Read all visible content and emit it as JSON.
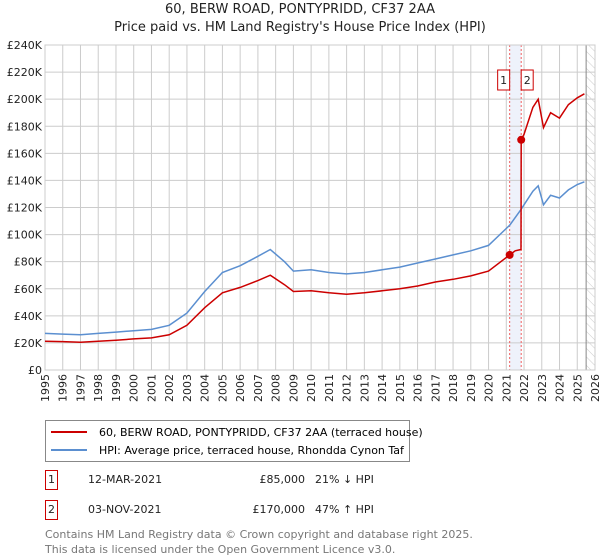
{
  "chart_data": {
    "type": "line",
    "title": "60, BERW ROAD, PONTYPRIDD, CF37 2AA",
    "subtitle": "Price paid vs. HM Land Registry's House Price Index (HPI)",
    "xlim": [
      1995,
      2026
    ],
    "ylim": [
      0,
      240000
    ],
    "x_ticks": [
      "1995",
      "1996",
      "1997",
      "1998",
      "1999",
      "2000",
      "2001",
      "2002",
      "2003",
      "2004",
      "2005",
      "2006",
      "2007",
      "2008",
      "2009",
      "2010",
      "2011",
      "2012",
      "2013",
      "2014",
      "2015",
      "2016",
      "2017",
      "2018",
      "2019",
      "2020",
      "2021",
      "2022",
      "2023",
      "2024",
      "2025",
      "2026"
    ],
    "y_ticks": [
      {
        "v": 0,
        "l": "£0"
      },
      {
        "v": 20000,
        "l": "£20K"
      },
      {
        "v": 40000,
        "l": "£40K"
      },
      {
        "v": 60000,
        "l": "£60K"
      },
      {
        "v": 80000,
        "l": "£80K"
      },
      {
        "v": 100000,
        "l": "£100K"
      },
      {
        "v": 120000,
        "l": "£120K"
      },
      {
        "v": 140000,
        "l": "£140K"
      },
      {
        "v": 160000,
        "l": "£160K"
      },
      {
        "v": 180000,
        "l": "£180K"
      },
      {
        "v": 200000,
        "l": "£200K"
      },
      {
        "v": 220000,
        "l": "£220K"
      },
      {
        "v": 240000,
        "l": "£240K"
      }
    ],
    "grid": true,
    "series": [
      {
        "name": "60, BERW ROAD, PONTYPRIDD, CF37 2AA (terraced house)",
        "color": "#cc0000",
        "x": [
          1995,
          1996,
          1997,
          1998,
          1999,
          2000,
          2001,
          2002,
          2003,
          2004,
          2005,
          2006,
          2007,
          2007.7,
          2008.5,
          2009,
          2010,
          2011,
          2012,
          2013,
          2014,
          2015,
          2016,
          2017,
          2018,
          2019,
          2020,
          2021.19,
          2021.5,
          2021.83,
          2021.84,
          2022.0,
          2022.5,
          2022.8,
          2023.1,
          2023.5,
          2024,
          2024.5,
          2025,
          2025.4
        ],
        "y": [
          21300,
          21000,
          20500,
          21300,
          22000,
          23000,
          23700,
          26000,
          33000,
          46000,
          57000,
          61000,
          66000,
          70000,
          63000,
          58000,
          58500,
          57000,
          56000,
          57000,
          58500,
          60000,
          62000,
          65000,
          67000,
          69500,
          73000,
          85000,
          88000,
          89000,
          170000,
          174000,
          194000,
          200000,
          179000,
          190000,
          186000,
          196000,
          201000,
          204000
        ]
      },
      {
        "name": "HPI: Average price, terraced house, Rhondda Cynon Taf",
        "color": "#5b8fd0",
        "x": [
          1995,
          1996,
          1997,
          1998,
          1999,
          2000,
          2001,
          2002,
          2003,
          2004,
          2005,
          2006,
          2007,
          2007.7,
          2008.5,
          2009,
          2010,
          2011,
          2012,
          2013,
          2014,
          2015,
          2016,
          2017,
          2018,
          2019,
          2020,
          2021.2,
          2021.8,
          2022.5,
          2022.8,
          2023.1,
          2023.5,
          2024,
          2024.5,
          2025,
          2025.4
        ],
        "y": [
          27000,
          26500,
          26000,
          27000,
          28000,
          29000,
          30000,
          33000,
          42000,
          58000,
          72000,
          77000,
          84000,
          89000,
          80000,
          73000,
          74000,
          72000,
          71000,
          72000,
          74000,
          76000,
          79000,
          82000,
          85000,
          88000,
          92000,
          107000,
          118000,
          132000,
          136000,
          122000,
          129000,
          127000,
          133000,
          137000,
          139000
        ]
      }
    ],
    "sales": [
      {
        "id": "1",
        "x": 2021.19,
        "y": 85000
      },
      {
        "id": "2",
        "x": 2021.84,
        "y": 170000
      }
    ],
    "future_hatch_from": 2025.5,
    "legend_position": "below"
  },
  "legend": [
    {
      "label": "60, BERW ROAD, PONTYPRIDD, CF37 2AA (terraced house)",
      "color": "#cc0000"
    },
    {
      "label": "HPI: Average price, terraced house, Rhondda Cynon Taf",
      "color": "#5b8fd0"
    }
  ],
  "transactions": [
    {
      "num": "1",
      "date": "12-MAR-2021",
      "price": "£85,000",
      "hpi": "21% ↓ HPI"
    },
    {
      "num": "2",
      "date": "03-NOV-2021",
      "price": "£170,000",
      "hpi": "47% ↑ HPI"
    }
  ],
  "footer": [
    "Contains HM Land Registry data © Crown copyright and database right 2025.",
    "This data is licensed under the Open Government Licence v3.0."
  ]
}
